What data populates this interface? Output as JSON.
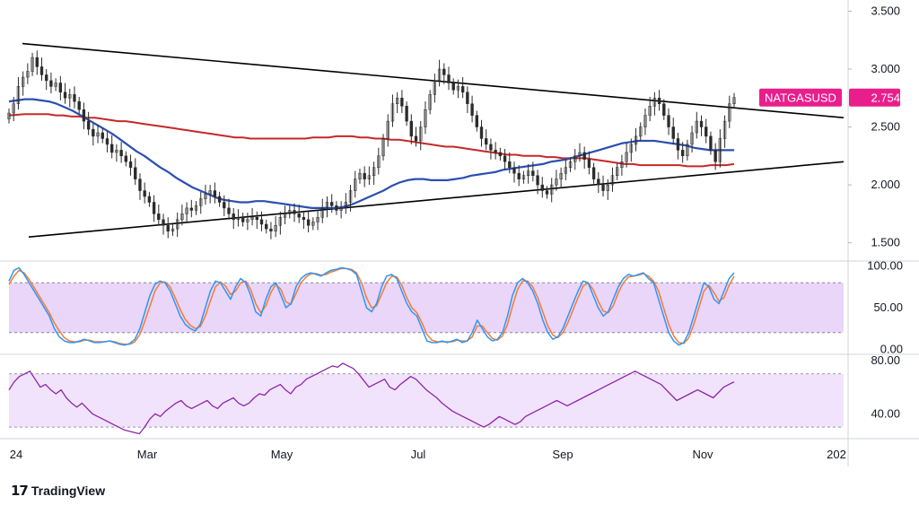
{
  "chart_data": {
    "type": "line",
    "symbol": "NATGASUSD",
    "last_price": "2.754",
    "x_labels": [
      "24",
      "Mar",
      "May",
      "Jul",
      "Sep",
      "Nov",
      "202"
    ],
    "price": {
      "y_ticks": [
        "3.500",
        "3.000",
        "2.500",
        "2.000",
        "1.500"
      ],
      "ylim": [
        1.35,
        3.55
      ],
      "close": [
        2.62,
        2.7,
        2.85,
        2.93,
        2.98,
        3.1,
        3.02,
        2.95,
        2.9,
        2.85,
        2.88,
        2.8,
        2.75,
        2.78,
        2.72,
        2.65,
        2.55,
        2.48,
        2.42,
        2.45,
        2.4,
        2.35,
        2.28,
        2.3,
        2.25,
        2.2,
        2.15,
        2.05,
        1.95,
        1.9,
        1.85,
        1.75,
        1.7,
        1.65,
        1.6,
        1.62,
        1.7,
        1.75,
        1.8,
        1.78,
        1.82,
        1.88,
        1.92,
        1.95,
        1.9,
        1.85,
        1.8,
        1.75,
        1.7,
        1.72,
        1.68,
        1.7,
        1.72,
        1.7,
        1.66,
        1.62,
        1.6,
        1.65,
        1.72,
        1.75,
        1.78,
        1.75,
        1.72,
        1.7,
        1.65,
        1.68,
        1.72,
        1.8,
        1.85,
        1.82,
        1.78,
        1.8,
        1.85,
        1.95,
        2.05,
        2.1,
        2.05,
        2.08,
        2.15,
        2.25,
        2.4,
        2.55,
        2.7,
        2.75,
        2.68,
        2.55,
        2.42,
        2.38,
        2.5,
        2.65,
        2.78,
        2.9,
        3.0,
        2.95,
        2.88,
        2.82,
        2.85,
        2.8,
        2.7,
        2.6,
        2.5,
        2.4,
        2.35,
        2.3,
        2.28,
        2.25,
        2.2,
        2.15,
        2.1,
        2.05,
        2.08,
        2.12,
        2.08,
        2.0,
        1.95,
        1.92,
        2.0,
        2.05,
        2.1,
        2.15,
        2.2,
        2.25,
        2.28,
        2.22,
        2.15,
        2.05,
        2.0,
        1.95,
        2.0,
        2.08,
        2.15,
        2.2,
        2.28,
        2.35,
        2.42,
        2.5,
        2.6,
        2.68,
        2.75,
        2.7,
        2.6,
        2.5,
        2.4,
        2.3,
        2.25,
        2.35,
        2.45,
        2.55,
        2.5,
        2.42,
        2.3,
        2.2,
        2.4,
        2.55,
        2.7,
        2.754
      ],
      "ma_red": [
        2.6,
        2.605,
        2.61,
        2.61,
        2.61,
        2.61,
        2.6,
        2.6,
        2.59,
        2.59,
        2.58,
        2.58,
        2.57,
        2.56,
        2.55,
        2.55,
        2.54,
        2.53,
        2.52,
        2.51,
        2.5,
        2.49,
        2.48,
        2.47,
        2.46,
        2.45,
        2.44,
        2.43,
        2.42,
        2.41,
        2.41,
        2.4,
        2.4,
        2.4,
        2.4,
        2.4,
        2.4,
        2.4,
        2.4,
        2.41,
        2.41,
        2.41,
        2.42,
        2.42,
        2.42,
        2.41,
        2.41,
        2.4,
        2.4,
        2.39,
        2.39,
        2.38,
        2.37,
        2.36,
        2.35,
        2.34,
        2.33,
        2.33,
        2.32,
        2.31,
        2.3,
        2.29,
        2.28,
        2.27,
        2.26,
        2.26,
        2.25,
        2.25,
        2.25,
        2.24,
        2.24,
        2.23,
        2.23,
        2.23,
        2.23,
        2.22,
        2.21,
        2.2,
        2.19,
        2.18,
        2.18,
        2.17,
        2.17,
        2.17,
        2.17,
        2.17,
        2.17,
        2.16,
        2.16,
        2.16,
        2.17,
        2.17,
        2.17,
        2.18
      ],
      "ma_blue": [
        2.72,
        2.73,
        2.74,
        2.74,
        2.73,
        2.72,
        2.7,
        2.67,
        2.64,
        2.6,
        2.56,
        2.52,
        2.48,
        2.44,
        2.39,
        2.34,
        2.29,
        2.25,
        2.2,
        2.15,
        2.11,
        2.06,
        2.02,
        1.98,
        1.95,
        1.92,
        1.89,
        1.87,
        1.86,
        1.85,
        1.85,
        1.86,
        1.86,
        1.85,
        1.84,
        1.83,
        1.82,
        1.81,
        1.8,
        1.8,
        1.8,
        1.8,
        1.81,
        1.83,
        1.86,
        1.89,
        1.92,
        1.95,
        1.99,
        2.02,
        2.04,
        2.05,
        2.05,
        2.04,
        2.04,
        2.04,
        2.05,
        2.06,
        2.08,
        2.09,
        2.1,
        2.11,
        2.13,
        2.14,
        2.15,
        2.16,
        2.17,
        2.18,
        2.2,
        2.21,
        2.22,
        2.24,
        2.26,
        2.28,
        2.3,
        2.32,
        2.34,
        2.36,
        2.37,
        2.38,
        2.38,
        2.38,
        2.37,
        2.36,
        2.35,
        2.34,
        2.32,
        2.31,
        2.3,
        2.3,
        2.3,
        2.3
      ],
      "trendline_upper": [
        3.22,
        2.58
      ],
      "trendline_lower": [
        1.55,
        2.2
      ]
    },
    "stoch": {
      "y_ticks": [
        "100.00",
        "50.00",
        "0.00"
      ],
      "ylim": [
        -5,
        105
      ],
      "band": [
        80,
        20
      ],
      "k": [
        82,
        95,
        98,
        90,
        80,
        70,
        60,
        50,
        40,
        25,
        15,
        10,
        8,
        8,
        10,
        12,
        10,
        8,
        8,
        9,
        10,
        8,
        6,
        5,
        7,
        12,
        25,
        45,
        65,
        78,
        82,
        80,
        70,
        55,
        40,
        30,
        25,
        22,
        30,
        50,
        70,
        82,
        80,
        70,
        60,
        75,
        85,
        80,
        65,
        45,
        40,
        60,
        75,
        80,
        65,
        50,
        55,
        75,
        85,
        90,
        92,
        90,
        88,
        92,
        95,
        96,
        98,
        97,
        95,
        90,
        70,
        50,
        45,
        55,
        75,
        88,
        90,
        85,
        70,
        55,
        45,
        40,
        25,
        10,
        8,
        8,
        10,
        8,
        10,
        12,
        8,
        10,
        20,
        35,
        25,
        15,
        10,
        12,
        20,
        40,
        65,
        80,
        85,
        80,
        70,
        55,
        35,
        20,
        12,
        15,
        25,
        40,
        55,
        70,
        82,
        80,
        65,
        50,
        40,
        45,
        60,
        75,
        85,
        90,
        88,
        90,
        92,
        85,
        80,
        60,
        40,
        20,
        10,
        5,
        8,
        20,
        40,
        60,
        80,
        75,
        60,
        55,
        70,
        85,
        92
      ],
      "d": [
        78,
        88,
        95,
        92,
        84,
        74,
        64,
        54,
        44,
        32,
        22,
        14,
        10,
        9,
        9,
        11,
        11,
        9,
        9,
        9,
        10,
        9,
        7,
        6,
        6,
        9,
        18,
        34,
        52,
        70,
        80,
        81,
        75,
        62,
        48,
        36,
        29,
        25,
        27,
        40,
        58,
        75,
        81,
        76,
        66,
        70,
        80,
        82,
        72,
        55,
        44,
        52,
        68,
        78,
        72,
        57,
        54,
        67,
        80,
        87,
        91,
        91,
        89,
        90,
        93,
        95,
        97,
        97,
        96,
        92,
        80,
        62,
        50,
        52,
        66,
        80,
        88,
        87,
        77,
        62,
        50,
        44,
        32,
        18,
        11,
        9,
        9,
        9,
        9,
        11,
        10,
        10,
        15,
        28,
        28,
        20,
        13,
        11,
        16,
        30,
        52,
        72,
        82,
        82,
        75,
        62,
        45,
        28,
        17,
        14,
        20,
        32,
        47,
        62,
        76,
        80,
        72,
        58,
        46,
        44,
        52,
        68,
        80,
        87,
        88,
        89,
        91,
        88,
        82,
        70,
        50,
        30,
        16,
        8,
        7,
        14,
        30,
        50,
        70,
        77,
        68,
        58,
        62,
        77,
        88
      ]
    },
    "rsi": {
      "y_ticks": [
        "80.00",
        "40.00"
      ],
      "ylim": [
        22,
        84
      ],
      "band": [
        70,
        30
      ],
      "values": [
        58,
        64,
        68,
        70,
        72,
        66,
        60,
        62,
        58,
        55,
        58,
        52,
        48,
        45,
        48,
        44,
        40,
        38,
        36,
        34,
        32,
        30,
        28,
        27,
        26,
        25,
        30,
        36,
        40,
        38,
        42,
        45,
        48,
        50,
        46,
        44,
        46,
        48,
        50,
        46,
        44,
        48,
        50,
        52,
        48,
        46,
        48,
        52,
        55,
        54,
        58,
        60,
        62,
        58,
        55,
        60,
        62,
        66,
        68,
        70,
        72,
        74,
        76,
        75,
        78,
        76,
        74,
        70,
        65,
        60,
        62,
        64,
        66,
        60,
        58,
        62,
        65,
        68,
        66,
        62,
        58,
        55,
        52,
        48,
        45,
        42,
        40,
        38,
        36,
        34,
        32,
        30,
        32,
        35,
        38,
        36,
        34,
        32,
        34,
        38,
        40,
        42,
        44,
        46,
        48,
        50,
        48,
        46,
        48,
        50,
        52,
        54,
        56,
        58,
        60,
        62,
        64,
        66,
        68,
        70,
        72,
        70,
        68,
        66,
        64,
        62,
        58,
        54,
        50,
        52,
        54,
        56,
        58,
        56,
        54,
        52,
        56,
        60,
        62,
        64
      ],
      "end_marker": true
    }
  }
}
